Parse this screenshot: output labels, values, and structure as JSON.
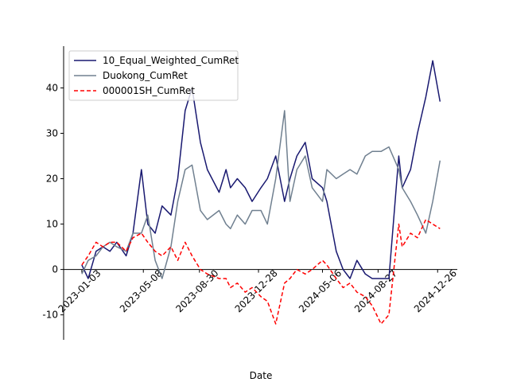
{
  "chart_data": {
    "type": "line",
    "xlabel": "Date",
    "x": [
      "2023-01-03",
      "2023-01-16",
      "2023-02-01",
      "2023-02-15",
      "2023-03-01",
      "2023-03-15",
      "2023-04-03",
      "2023-04-17",
      "2023-05-04",
      "2023-05-17",
      "2023-06-01",
      "2023-06-15",
      "2023-07-03",
      "2023-07-17",
      "2023-08-01",
      "2023-08-15",
      "2023-09-01",
      "2023-09-15",
      "2023-10-09",
      "2023-10-23",
      "2023-11-01",
      "2023-11-15",
      "2023-12-01",
      "2023-12-15",
      "2024-01-02",
      "2024-01-15",
      "2024-02-01",
      "2024-02-19",
      "2024-03-01",
      "2024-03-15",
      "2024-04-01",
      "2024-04-15",
      "2024-05-06",
      "2024-05-15",
      "2024-06-03",
      "2024-06-17",
      "2024-07-01",
      "2024-07-15",
      "2024-08-01",
      "2024-08-15",
      "2024-09-02",
      "2024-09-18",
      "2024-10-08",
      "2024-10-15",
      "2024-11-01",
      "2024-11-15",
      "2024-12-02",
      "2024-12-16",
      "2024-12-31"
    ],
    "series": [
      {
        "name": "10_Equal_Weighted_CumRet",
        "color": "#191970",
        "linestyle": "solid",
        "values": [
          1,
          -2,
          4,
          5,
          4,
          6,
          3,
          8,
          22,
          10,
          8,
          14,
          12,
          20,
          35,
          40,
          28,
          22,
          17,
          22,
          18,
          20,
          18,
          15,
          18,
          20,
          25,
          15,
          20,
          25,
          28,
          20,
          18,
          15,
          4,
          0,
          -2,
          2,
          -1,
          -2,
          -2,
          -2,
          25,
          18,
          22,
          30,
          38,
          46,
          37
        ]
      },
      {
        "name": "Duokong_CumRet",
        "color": "#708090",
        "linestyle": "solid",
        "values": [
          -1,
          2,
          3,
          5,
          6,
          5,
          4,
          8,
          8,
          12,
          2,
          -2,
          5,
          15,
          22,
          23,
          13,
          11,
          13,
          10,
          9,
          12,
          10,
          13,
          13,
          10,
          20,
          35,
          15,
          22,
          25,
          18,
          15,
          22,
          20,
          21,
          22,
          21,
          25,
          26,
          26,
          27,
          22,
          18,
          15,
          12,
          8,
          15,
          24
        ]
      },
      {
        "name": "000001SH_CumRet",
        "color": "#ff0000",
        "linestyle": "dashed",
        "values": [
          1,
          3,
          6,
          5,
          6,
          6,
          4,
          7,
          8,
          6,
          4,
          3,
          5,
          2,
          6,
          3,
          0,
          -1,
          -2,
          -2,
          -4,
          -3,
          -5,
          -4,
          -6,
          -7,
          -12,
          -3,
          -2,
          0,
          -1,
          0,
          2,
          1,
          -2,
          -4,
          -3,
          -5,
          -6,
          -8,
          -12,
          -10,
          10,
          5,
          8,
          7,
          11,
          10,
          9
        ]
      }
    ],
    "xlim": [
      "2022-11-27",
      "2025-02-04"
    ],
    "xticks": [
      "2023-01-03",
      "2023-05-08",
      "2023-08-30",
      "2023-12-28",
      "2024-05-06",
      "2024-08-27",
      "2024-12-26"
    ],
    "ylim": [
      -15.5,
      49.2
    ],
    "yticks": [
      -10,
      0,
      10,
      20,
      30,
      40
    ],
    "grid": false,
    "legend": "upper left"
  }
}
